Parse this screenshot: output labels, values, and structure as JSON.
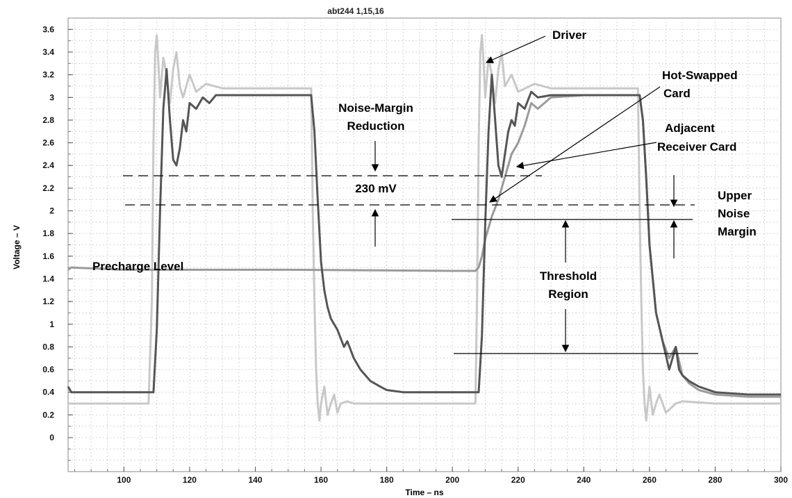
{
  "chart_data": {
    "type": "line",
    "title": "abt244  1,15,16",
    "xlabel": "Time – ns",
    "ylabel": "Voltage – V",
    "xlim": [
      83,
      300
    ],
    "ylim": [
      -0.3,
      3.7
    ],
    "grid": true,
    "xticks": [
      100,
      120,
      140,
      160,
      180,
      200,
      220,
      240,
      260,
      280,
      300
    ],
    "yticks": [
      0,
      0.2,
      0.4,
      0.6,
      0.8,
      1,
      1.2,
      1.4,
      1.6,
      1.8,
      2,
      2.2,
      2.4,
      2.6,
      2.8,
      3,
      3.2,
      3.4,
      3.6
    ],
    "series": [
      {
        "name": "Driver",
        "color": "#c8c8c8",
        "x": [
          83,
          100,
          107.5,
          108.5,
          109,
          109.5,
          110,
          110.5,
          111,
          112,
          113,
          114,
          115,
          116,
          117,
          118,
          120,
          122,
          125,
          130,
          140,
          150,
          157,
          157.5,
          158,
          158.5,
          159,
          159.5,
          160,
          161,
          162,
          163,
          164,
          165,
          166,
          168,
          170,
          180,
          190,
          200,
          207,
          207.5,
          208,
          208.5,
          209,
          209.5,
          210,
          211,
          212,
          213,
          214,
          215,
          216,
          218,
          220,
          225,
          230,
          240,
          250,
          256.5,
          257,
          257.5,
          258,
          258.5,
          259,
          259.5,
          260,
          261,
          262,
          263,
          265,
          268,
          270,
          280,
          290,
          300
        ],
        "y": [
          0.3,
          0.3,
          0.3,
          1.2,
          2.6,
          3.4,
          3.55,
          3.3,
          3.0,
          3.35,
          3.2,
          2.95,
          3.25,
          3.4,
          3.1,
          3.0,
          3.2,
          3.05,
          3.12,
          3.08,
          3.08,
          3.08,
          3.08,
          2.0,
          1.2,
          0.6,
          0.3,
          0.15,
          0.3,
          0.45,
          0.2,
          0.3,
          0.38,
          0.22,
          0.3,
          0.32,
          0.3,
          0.3,
          0.3,
          0.3,
          0.3,
          1.2,
          2.6,
          3.4,
          3.55,
          3.3,
          3.0,
          3.35,
          3.2,
          2.95,
          3.25,
          3.4,
          3.1,
          3.2,
          3.05,
          3.12,
          3.08,
          3.08,
          3.08,
          3.08,
          2.0,
          1.2,
          0.6,
          0.3,
          0.15,
          0.3,
          0.45,
          0.2,
          0.3,
          0.38,
          0.22,
          0.3,
          0.32,
          0.3,
          0.3,
          0.3
        ]
      },
      {
        "name": "Hot-Swapped Card",
        "color": "#555555",
        "x": [
          83,
          84,
          90,
          100,
          109,
          110,
          111,
          112,
          113,
          114,
          115,
          116,
          117,
          118,
          119,
          120,
          122,
          124,
          126,
          128,
          130,
          140,
          150,
          157,
          158,
          159,
          160,
          161,
          162,
          163,
          165,
          167,
          168,
          170,
          172,
          175,
          178,
          180,
          185,
          190,
          200,
          208,
          209,
          210,
          211,
          212,
          213,
          214,
          215,
          216,
          217,
          218,
          219,
          220,
          222,
          224,
          226,
          230,
          240,
          250,
          257,
          258,
          259,
          260,
          261,
          262,
          264,
          266,
          267,
          268,
          269,
          270,
          272,
          275,
          280,
          290,
          300
        ],
        "y": [
          0.45,
          0.4,
          0.4,
          0.4,
          0.4,
          0.95,
          2.0,
          2.9,
          3.25,
          2.8,
          2.45,
          2.4,
          2.55,
          2.8,
          2.7,
          2.95,
          2.9,
          3.0,
          2.95,
          3.02,
          3.02,
          3.02,
          3.02,
          3.02,
          2.7,
          2.1,
          1.55,
          1.3,
          1.15,
          1.05,
          0.95,
          0.8,
          0.85,
          0.7,
          0.6,
          0.5,
          0.45,
          0.42,
          0.4,
          0.4,
          0.4,
          0.4,
          0.9,
          1.9,
          2.7,
          3.2,
          2.8,
          2.4,
          2.3,
          2.5,
          2.7,
          2.8,
          2.75,
          2.95,
          2.9,
          3.05,
          3.0,
          3.02,
          3.02,
          3.02,
          3.02,
          2.8,
          2.3,
          1.7,
          1.4,
          1.1,
          0.85,
          0.6,
          0.7,
          0.8,
          0.6,
          0.55,
          0.5,
          0.45,
          0.4,
          0.38,
          0.38
        ]
      },
      {
        "name": "Adjacent Receiver Card",
        "color": "#9a9a9a",
        "x": [
          83,
          84,
          100,
          150,
          200,
          207,
          208,
          209,
          210,
          212,
          214,
          216,
          218,
          220,
          222,
          224,
          226,
          230,
          240,
          250,
          257,
          258,
          259,
          260,
          261,
          262,
          264,
          266,
          268,
          270,
          272,
          275,
          280,
          290,
          300
        ],
        "y": [
          1.48,
          1.5,
          1.48,
          1.48,
          1.47,
          1.47,
          1.5,
          1.6,
          1.75,
          1.95,
          2.1,
          2.3,
          2.5,
          2.6,
          2.75,
          2.95,
          2.9,
          3.0,
          3.02,
          3.02,
          3.02,
          2.8,
          2.3,
          1.7,
          1.4,
          1.1,
          0.85,
          0.7,
          0.8,
          0.55,
          0.48,
          0.42,
          0.38,
          0.36,
          0.36
        ]
      }
    ],
    "annotations": {
      "noise_margin": [
        "Noise-Margin",
        "Reduction"
      ],
      "mv": "230 mV",
      "driver": "Driver",
      "hot_swapped": [
        "Hot-Swapped",
        "Card"
      ],
      "adjacent": [
        "Adjacent",
        "Receiver Card"
      ],
      "upper_noise": [
        "Upper",
        "Noise",
        "Margin"
      ],
      "threshold": [
        "Threshold",
        "Region"
      ],
      "precharge": "Precharge Level"
    }
  }
}
